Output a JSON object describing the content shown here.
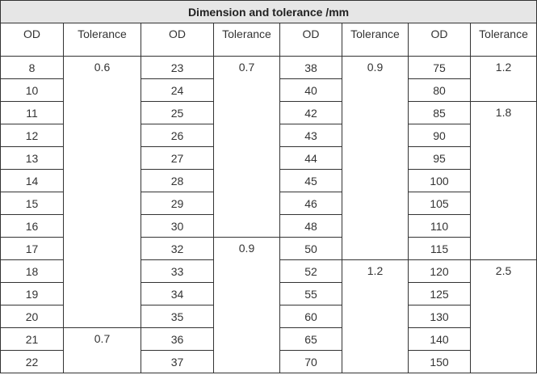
{
  "title": "Dimension and tolerance /mm",
  "headers": [
    "OD",
    "Tolerance",
    "OD",
    "Tolerance",
    "OD",
    "Tolerance",
    "OD",
    "Tolerance"
  ],
  "groups": [
    {
      "od": [
        "8",
        "10",
        "11",
        "12",
        "13",
        "14",
        "15",
        "16",
        "17",
        "18",
        "19",
        "20",
        "21",
        "22"
      ],
      "tolerances": [
        {
          "value": "0.6",
          "span": 12
        },
        {
          "value": "0.7",
          "span": 2
        }
      ]
    },
    {
      "od": [
        "23",
        "24",
        "25",
        "26",
        "27",
        "28",
        "29",
        "30",
        "32",
        "33",
        "34",
        "35",
        "36",
        "37"
      ],
      "tolerances": [
        {
          "value": "0.7",
          "span": 8
        },
        {
          "value": "0.9",
          "span": 6
        }
      ]
    },
    {
      "od": [
        "38",
        "40",
        "42",
        "43",
        "44",
        "45",
        "46",
        "48",
        "50",
        "52",
        "55",
        "60",
        "65",
        "70"
      ],
      "tolerances": [
        {
          "value": "0.9",
          "span": 9
        },
        {
          "value": "1.2",
          "span": 5
        }
      ]
    },
    {
      "od": [
        "75",
        "80",
        "85",
        "90",
        "95",
        "100",
        "105",
        "110",
        "115",
        "120",
        "125",
        "130",
        "140",
        "150"
      ],
      "tolerances": [
        {
          "value": "1.2",
          "span": 2
        },
        {
          "value": "1.8",
          "span": 7
        },
        {
          "value": "2.5",
          "span": 5
        }
      ]
    }
  ]
}
